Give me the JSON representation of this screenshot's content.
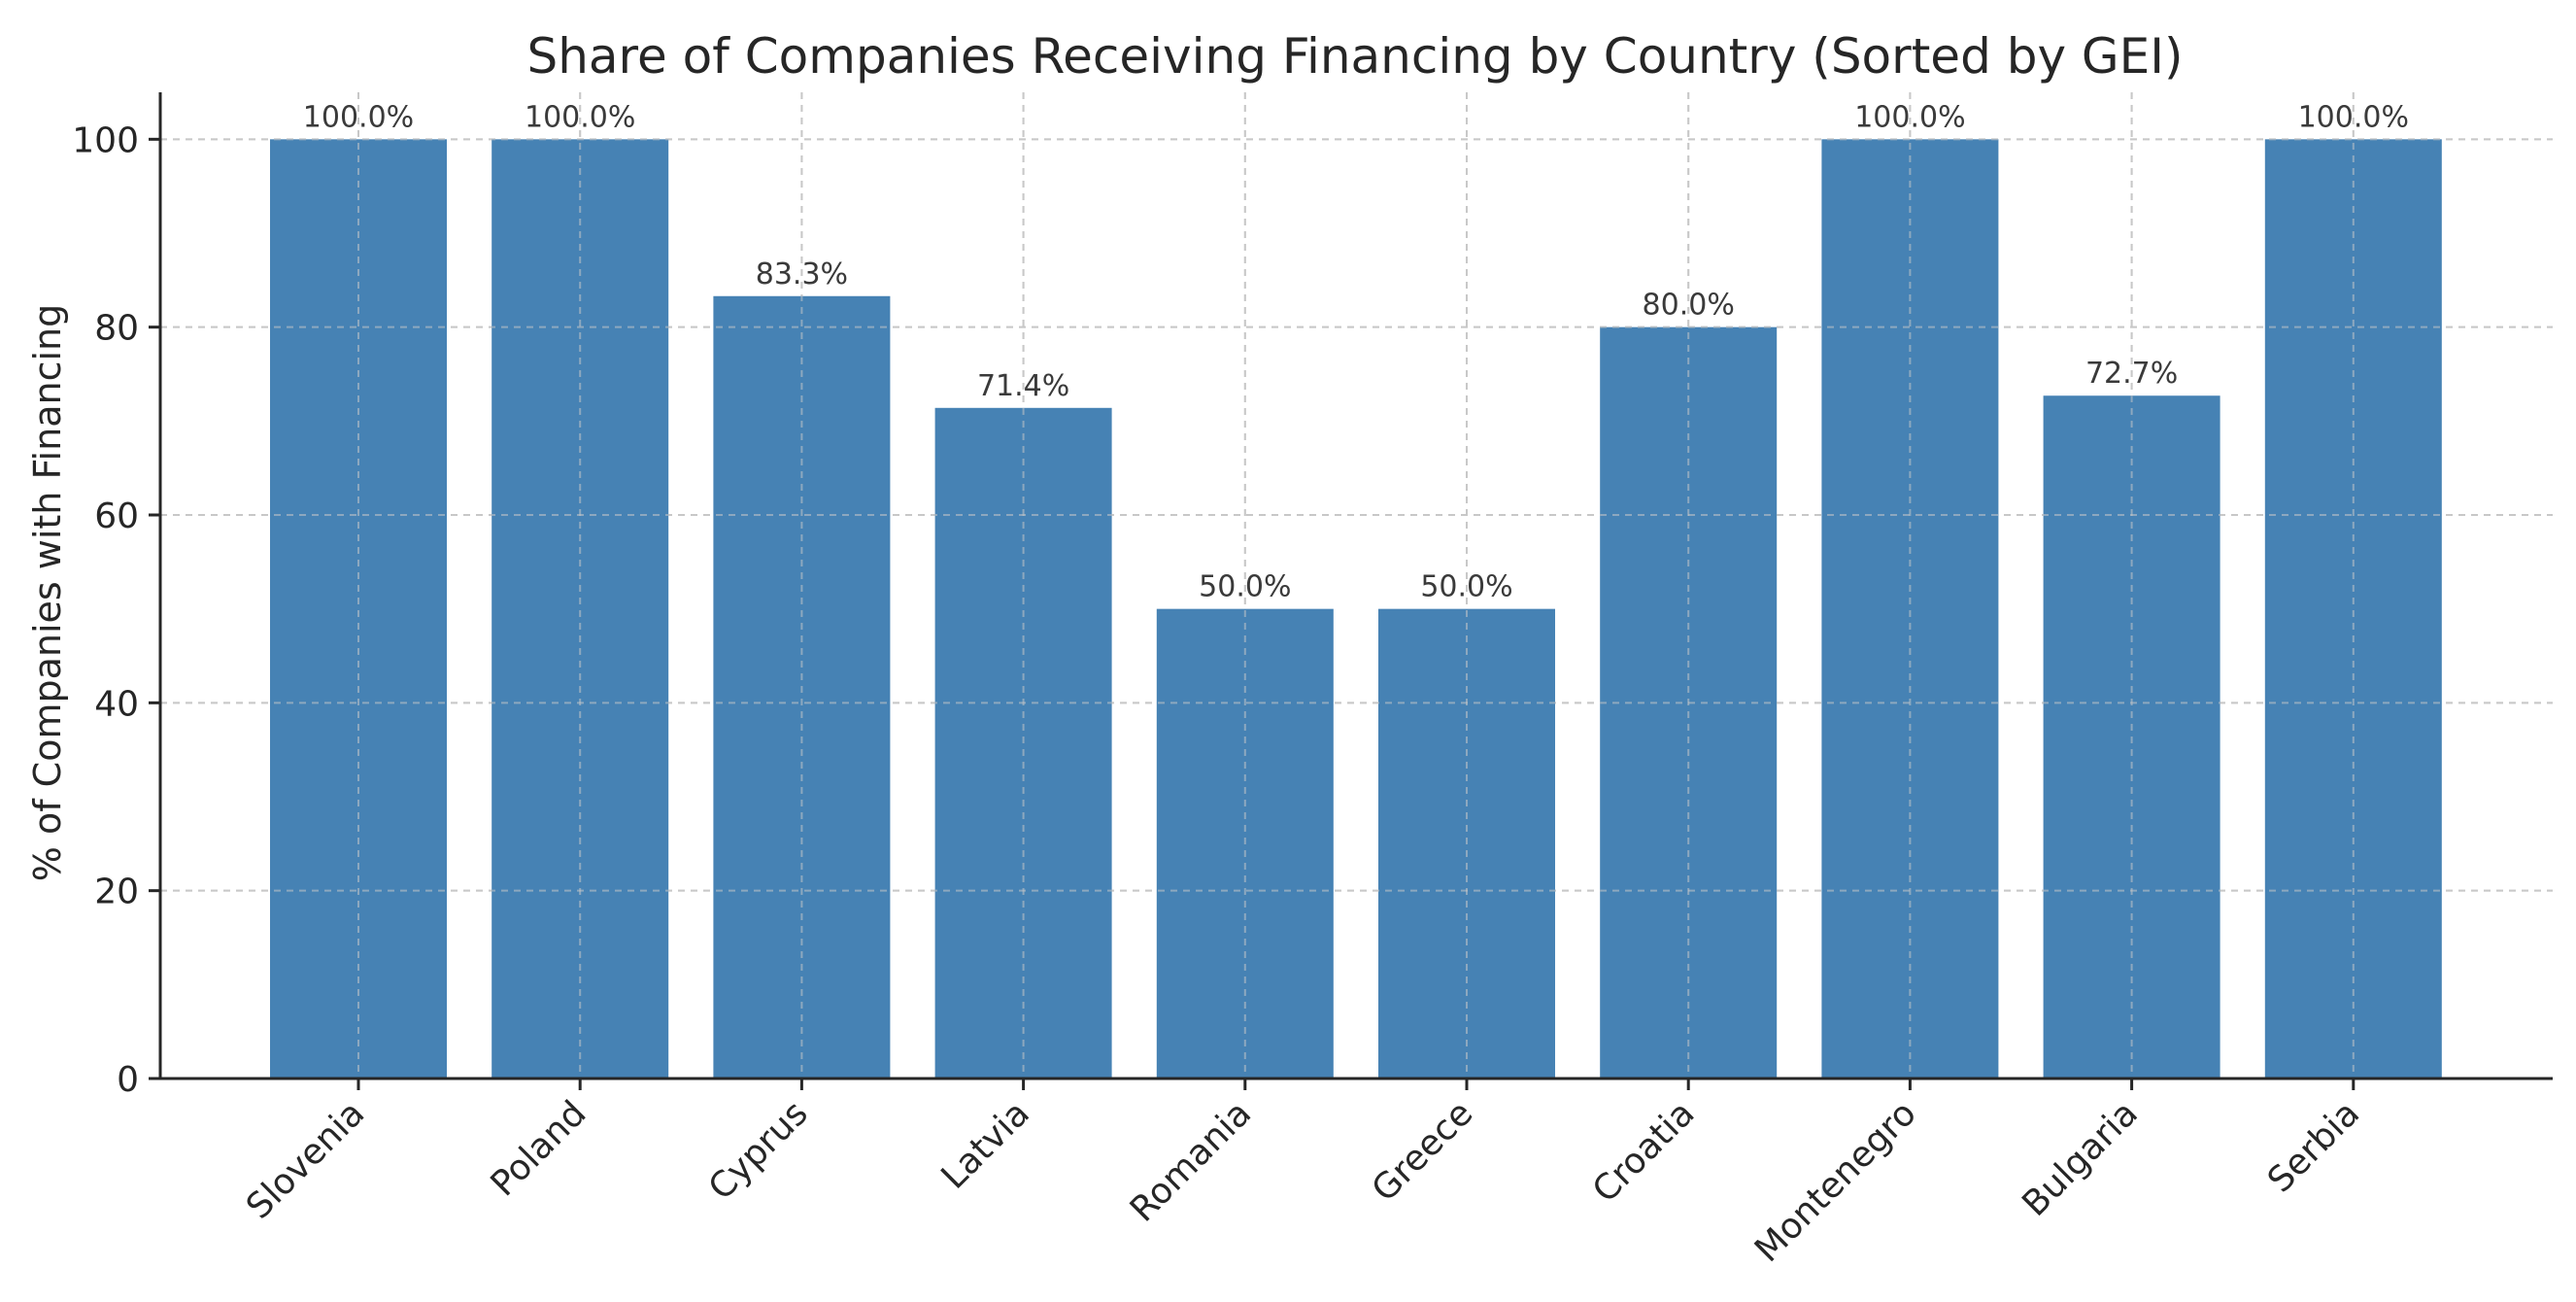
{
  "chart_data": {
    "type": "bar",
    "title": "Share of Companies Receiving Financing by Country (Sorted by GEI)",
    "xlabel": "",
    "ylabel": "% of Companies with Financing",
    "categories": [
      "Slovenia",
      "Poland",
      "Cyprus",
      "Latvia",
      "Romania",
      "Greece",
      "Croatia",
      "Montenegro",
      "Bulgaria",
      "Serbia"
    ],
    "values": [
      100.0,
      100.0,
      83.3,
      71.4,
      50.0,
      50.0,
      80.0,
      100.0,
      72.7,
      100.0
    ],
    "data_labels": [
      "100.0%",
      "100.0%",
      "83.3%",
      "71.4%",
      "50.0%",
      "50.0%",
      "80.0%",
      "100.0%",
      "72.7%",
      "100.0%"
    ],
    "yticks": [
      0,
      20,
      40,
      60,
      80,
      100
    ],
    "ylim": [
      0,
      105
    ],
    "grid": true,
    "legend": "none",
    "bar_color": "#4682b4"
  }
}
